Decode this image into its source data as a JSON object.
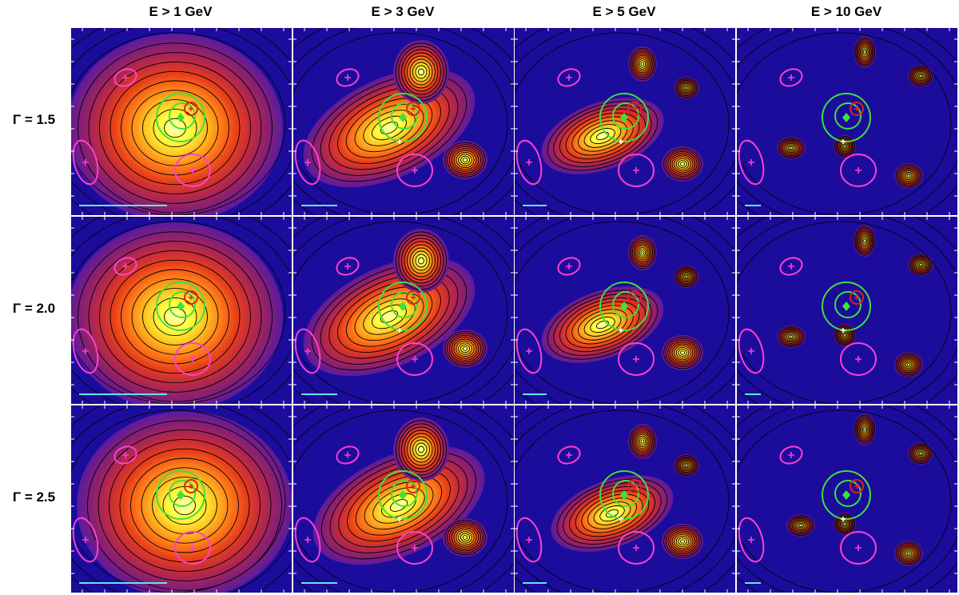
{
  "columns": [
    {
      "label": "E > 1 GeV"
    },
    {
      "label": "E > 3 GeV"
    },
    {
      "label": "E > 5 GeV"
    },
    {
      "label": "E > 10 GeV"
    }
  ],
  "rows": [
    {
      "label": "Γ = 1.5"
    },
    {
      "label": "Γ = 2.0"
    },
    {
      "label": "Γ = 2.5"
    }
  ],
  "colors": {
    "background_map": "#1b0c9c",
    "contour": "#000000",
    "magenta_ellipse": "#ff3fd2",
    "green_circle": "#3fe03f",
    "red_circle": "#e02020",
    "scale_bar": "#5fe6e6",
    "white_marker": "#ffffff"
  }
}
